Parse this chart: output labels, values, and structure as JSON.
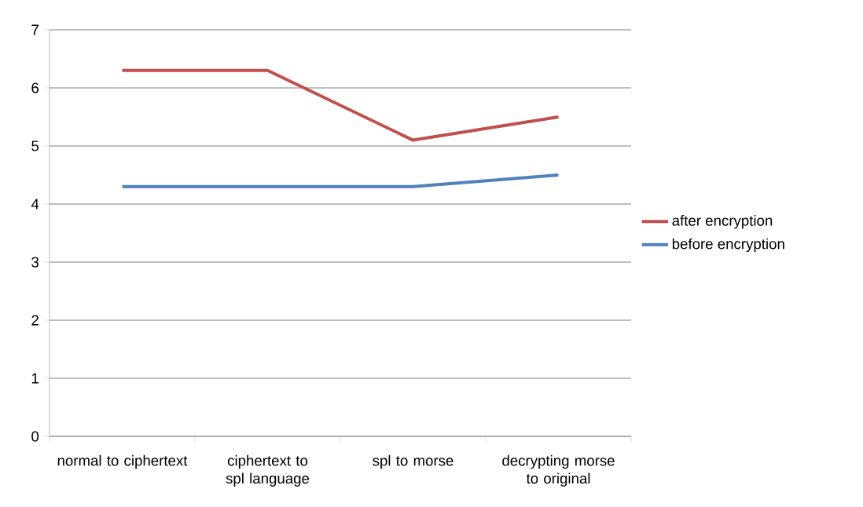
{
  "chart_data": {
    "type": "line",
    "categories": [
      "normal to ciphertext",
      "ciphertext to spl language",
      "spl to morse",
      "decrypting morse to original"
    ],
    "series": [
      {
        "name": "after encryption",
        "color": "#c0504d",
        "values": [
          6.3,
          6.3,
          5.1,
          5.5
        ]
      },
      {
        "name": "before encryption",
        "color": "#4f81bd",
        "values": [
          4.3,
          4.3,
          4.3,
          4.5
        ]
      }
    ],
    "ylim": [
      0,
      7
    ],
    "yticks": [
      0,
      1,
      2,
      3,
      4,
      5,
      6,
      7
    ],
    "grid": "y",
    "legend": "right",
    "marker": "none",
    "line_style": "solid"
  }
}
